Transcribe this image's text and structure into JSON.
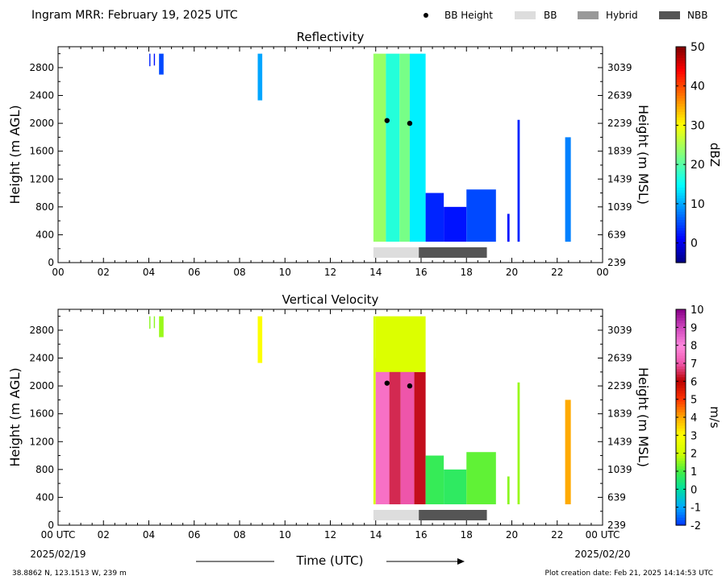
{
  "header": {
    "title": "Ingram MRR:  February 19, 2025 UTC",
    "legend": [
      {
        "label": "BB Height",
        "kind": "dot",
        "color": "#000000"
      },
      {
        "label": "BB",
        "kind": "box",
        "color": "#dddddd"
      },
      {
        "label": "Hybrid",
        "kind": "box",
        "color": "#999999"
      },
      {
        "label": "NBB",
        "kind": "box",
        "color": "#555555"
      }
    ]
  },
  "footer": {
    "location": "38.8862 N, 123.1513 W, 239 m",
    "creation": "Plot creation date: Feb 21, 2025 14:14:53 UTC",
    "xlabel": "Time (UTC)",
    "date_left": "2025/02/19",
    "date_right": "2025/02/20"
  },
  "chart_data": [
    {
      "type": "heatmap",
      "title": "Reflectivity",
      "ylabel": "Height (m AGL)",
      "y2label": "Height (m MSL)",
      "xlim": [
        0,
        24
      ],
      "ylim": [
        0,
        3100
      ],
      "x_ticks": [
        "00",
        "02",
        "04",
        "06",
        "08",
        "10",
        "12",
        "14",
        "16",
        "18",
        "20",
        "22",
        "00"
      ],
      "y_ticks": [
        0,
        400,
        800,
        1200,
        1600,
        2000,
        2400,
        2800
      ],
      "y2_ticks": [
        "239",
        "639",
        "1039",
        "1439",
        "1839",
        "2239",
        "2639",
        "3039"
      ],
      "colorbar": {
        "label": "dBZ",
        "min": -5,
        "max": 50,
        "ticks": [
          0,
          10,
          20,
          30,
          40,
          50
        ],
        "colormap": "jet"
      },
      "bright_band_height": [
        {
          "t": 14.5,
          "h": 2040
        },
        {
          "t": 15.5,
          "h": 2000
        }
      ],
      "bb_type_bar": [
        {
          "start": 13.9,
          "end": 15.9,
          "type": "BB"
        },
        {
          "start": 15.9,
          "end": 18.9,
          "type": "NBB"
        }
      ],
      "echo_columns": [
        {
          "start": 4.02,
          "end": 4.07,
          "bottom": 2820,
          "top": 3000,
          "value": 3
        },
        {
          "start": 4.22,
          "end": 4.27,
          "bottom": 2830,
          "top": 3000,
          "value": 2
        },
        {
          "start": 4.45,
          "end": 4.65,
          "bottom": 2700,
          "top": 3000,
          "value": 5
        },
        {
          "start": 8.8,
          "end": 9.0,
          "bottom": 2330,
          "top": 3000,
          "value": 10
        },
        {
          "start": 13.9,
          "end": 14.45,
          "bottom": 300,
          "top": 3000,
          "value": 24
        },
        {
          "start": 14.45,
          "end": 15.05,
          "bottom": 300,
          "top": 3000,
          "value": 17
        },
        {
          "start": 15.05,
          "end": 15.5,
          "bottom": 300,
          "top": 3000,
          "value": 22
        },
        {
          "start": 15.5,
          "end": 16.2,
          "bottom": 300,
          "top": 3000,
          "value": 14
        },
        {
          "start": 16.2,
          "end": 17.0,
          "bottom": 300,
          "top": 1000,
          "value": 3
        },
        {
          "start": 17.0,
          "end": 18.0,
          "bottom": 300,
          "top": 800,
          "value": 2
        },
        {
          "start": 18.0,
          "end": 19.3,
          "bottom": 300,
          "top": 1050,
          "value": 5
        },
        {
          "start": 19.8,
          "end": 19.9,
          "bottom": 300,
          "top": 700,
          "value": 2
        },
        {
          "start": 20.25,
          "end": 20.35,
          "bottom": 300,
          "top": 2050,
          "value": 3
        },
        {
          "start": 22.35,
          "end": 22.6,
          "bottom": 300,
          "top": 1800,
          "value": 8
        }
      ]
    },
    {
      "type": "heatmap",
      "title": "Vertical Velocity",
      "ylabel": "Height (m AGL)",
      "y2label": "Height (m MSL)",
      "xlim": [
        0,
        24
      ],
      "ylim": [
        0,
        3100
      ],
      "x_ticks": [
        "00 UTC",
        "02",
        "04",
        "06",
        "08",
        "10",
        "12",
        "14",
        "16",
        "18",
        "20",
        "22",
        "00 UTC"
      ],
      "y_ticks": [
        0,
        400,
        800,
        1200,
        1600,
        2000,
        2400,
        2800
      ],
      "y2_ticks": [
        "239",
        "639",
        "1039",
        "1439",
        "1839",
        "2239",
        "2639",
        "3039"
      ],
      "colorbar": {
        "label": "m/s",
        "min": -2,
        "max": 10,
        "ticks": [
          -2,
          -1,
          0,
          1,
          2,
          3,
          4,
          5,
          6,
          7,
          8,
          9,
          10
        ],
        "colormap": "velocity"
      },
      "bright_band_height": [
        {
          "t": 14.5,
          "h": 2040
        },
        {
          "t": 15.5,
          "h": 2000
        }
      ],
      "bb_type_bar": [
        {
          "start": 13.9,
          "end": 15.9,
          "type": "BB"
        },
        {
          "start": 15.9,
          "end": 18.9,
          "type": "NBB"
        }
      ],
      "echo_columns": [
        {
          "start": 4.02,
          "end": 4.07,
          "bottom": 2820,
          "top": 3000,
          "value": 1.5
        },
        {
          "start": 4.22,
          "end": 4.27,
          "bottom": 2830,
          "top": 3000,
          "value": 1.5
        },
        {
          "start": 4.45,
          "end": 4.65,
          "bottom": 2700,
          "top": 3000,
          "value": 1.6
        },
        {
          "start": 8.8,
          "end": 9.0,
          "bottom": 2330,
          "top": 3000,
          "value": 3
        },
        {
          "start": 13.9,
          "end": 14.0,
          "bottom": 300,
          "top": 3000,
          "value": 2.2
        },
        {
          "start": 14.0,
          "end": 14.6,
          "bottom": 300,
          "top": 2400,
          "value": 7.5
        },
        {
          "start": 14.6,
          "end": 15.1,
          "bottom": 300,
          "top": 2300,
          "value": 6.5
        },
        {
          "start": 15.1,
          "end": 15.7,
          "bottom": 300,
          "top": 2450,
          "value": 7
        },
        {
          "start": 15.7,
          "end": 16.2,
          "bottom": 300,
          "top": 2200,
          "value": 6.2
        },
        {
          "start": 14.0,
          "end": 16.2,
          "bottom": 2200,
          "top": 3000,
          "value": 2.3
        },
        {
          "start": 16.2,
          "end": 17.0,
          "bottom": 300,
          "top": 1000,
          "value": 0.8
        },
        {
          "start": 17.0,
          "end": 18.0,
          "bottom": 300,
          "top": 800,
          "value": 0.7
        },
        {
          "start": 18.0,
          "end": 19.3,
          "bottom": 300,
          "top": 1050,
          "value": 1.2
        },
        {
          "start": 19.8,
          "end": 19.9,
          "bottom": 300,
          "top": 700,
          "value": 1.5
        },
        {
          "start": 20.25,
          "end": 20.35,
          "bottom": 300,
          "top": 2050,
          "value": 1.6
        },
        {
          "start": 22.35,
          "end": 22.6,
          "bottom": 300,
          "top": 1800,
          "value": 4
        }
      ]
    }
  ]
}
